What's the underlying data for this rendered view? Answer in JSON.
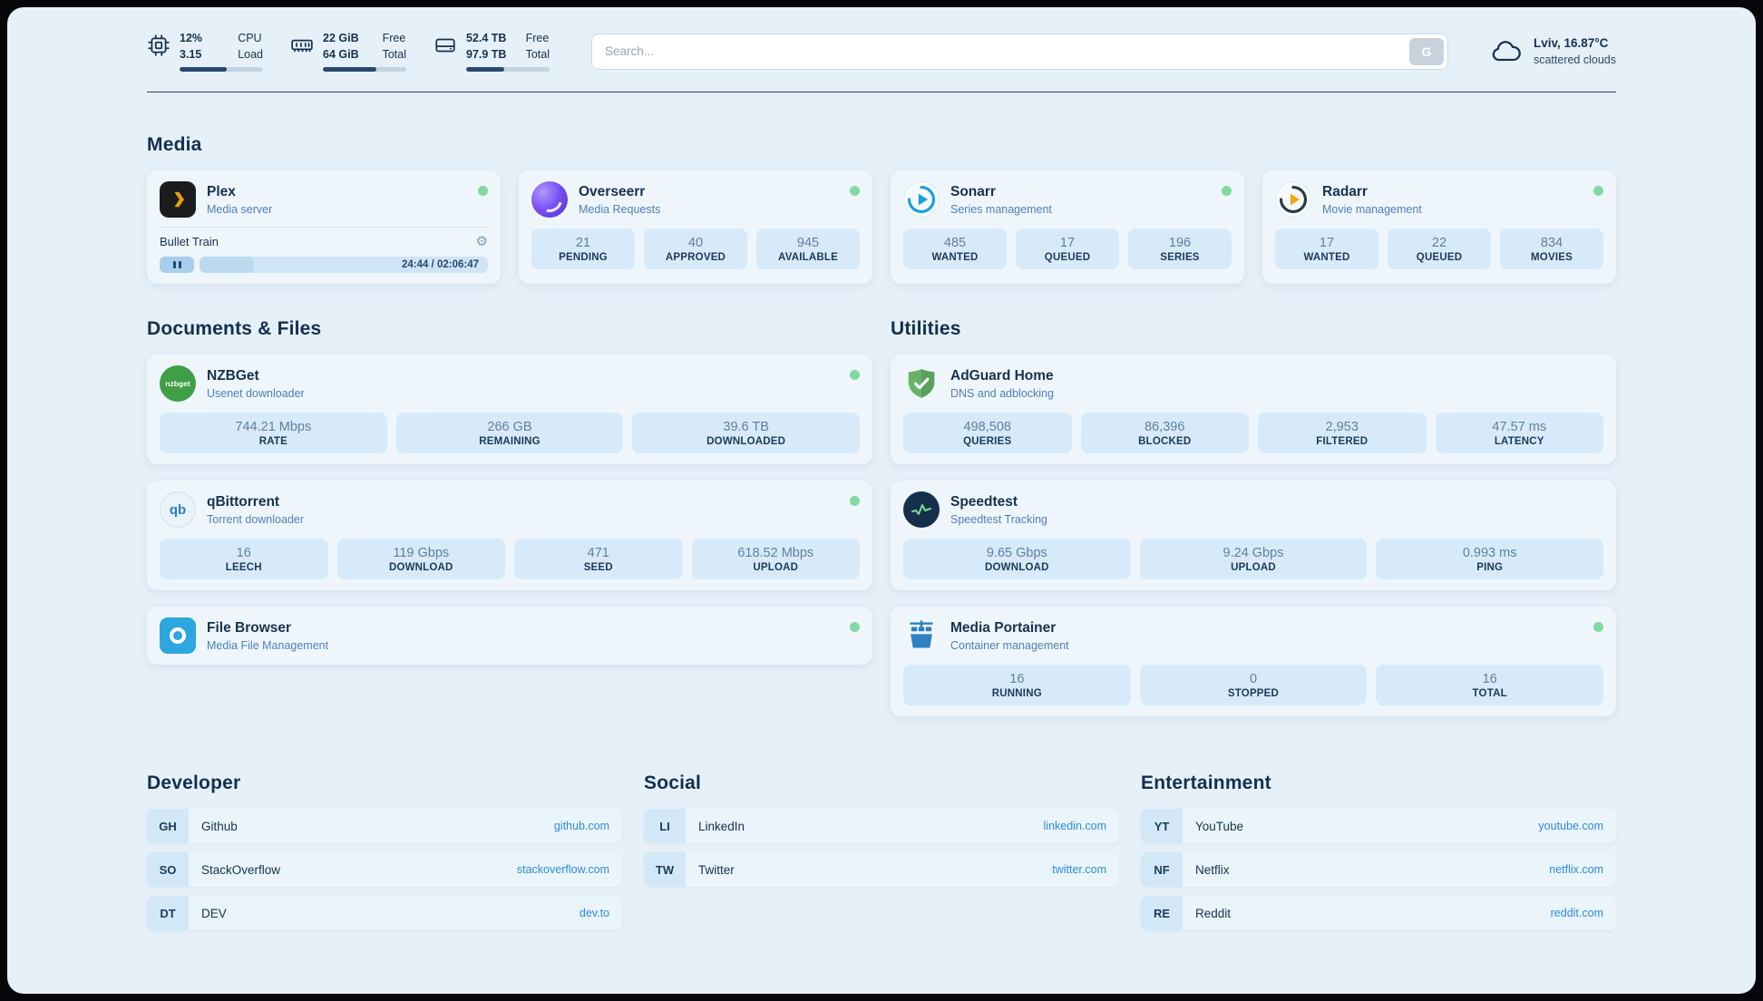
{
  "topbar": {
    "cpu": {
      "icon": "cpu-chip-icon",
      "value": "12%",
      "sub": "3.15",
      "label_top": "CPU",
      "label_bottom": "Load",
      "progress": 57
    },
    "memory": {
      "icon": "ram-icon",
      "value": "22 GiB",
      "sub": "64 GiB",
      "label_top": "Free",
      "label_bottom": "Total",
      "progress": 64
    },
    "disk": {
      "icon": "disk-icon",
      "value": "52.4 TB",
      "sub": "97.9 TB",
      "label_top": "Free",
      "label_bottom": "Total",
      "progress": 46
    },
    "search": {
      "placeholder": "Search...",
      "button_label": "G"
    },
    "weather": {
      "icon": "cloud-icon",
      "location": "Lviv, 16.87°C",
      "condition": "scattered clouds"
    }
  },
  "media": {
    "title": "Media",
    "plex": {
      "icon": "plex-icon",
      "name": "Plex",
      "subtitle": "Media server",
      "online": true,
      "now_playing": {
        "title": "Bullet Train",
        "time": "24:44 / 02:06:47",
        "progress": 19
      }
    },
    "overseerr": {
      "icon": "overseerr-icon",
      "name": "Overseerr",
      "subtitle": "Media Requests",
      "online": true,
      "stats": [
        {
          "value": "21",
          "label": "PENDING"
        },
        {
          "value": "40",
          "label": "APPROVED"
        },
        {
          "value": "945",
          "label": "AVAILABLE"
        }
      ]
    },
    "sonarr": {
      "icon": "sonarr-icon",
      "name": "Sonarr",
      "subtitle": "Series management",
      "online": true,
      "stats": [
        {
          "value": "485",
          "label": "WANTED"
        },
        {
          "value": "17",
          "label": "QUEUED"
        },
        {
          "value": "196",
          "label": "SERIES"
        }
      ]
    },
    "radarr": {
      "icon": "radarr-icon",
      "name": "Radarr",
      "subtitle": "Movie management",
      "online": true,
      "stats": [
        {
          "value": "17",
          "label": "WANTED"
        },
        {
          "value": "22",
          "label": "QUEUED"
        },
        {
          "value": "834",
          "label": "MOVIES"
        }
      ]
    }
  },
  "documents": {
    "title": "Documents & Files",
    "nzbget": {
      "icon": "nzbget-icon",
      "name": "NZBGet",
      "subtitle": "Usenet downloader",
      "online": true,
      "stats": [
        {
          "value": "744.21 Mbps",
          "label": "RATE"
        },
        {
          "value": "266 GB",
          "label": "REMAINING"
        },
        {
          "value": "39.6 TB",
          "label": "DOWNLOADED"
        }
      ]
    },
    "qbittorrent": {
      "icon": "qbittorrent-icon",
      "name": "qBittorrent",
      "subtitle": "Torrent downloader",
      "online": true,
      "stats": [
        {
          "value": "16",
          "label": "LEECH"
        },
        {
          "value": "119 Gbps",
          "label": "DOWNLOAD"
        },
        {
          "value": "471",
          "label": "SEED"
        },
        {
          "value": "618.52 Mbps",
          "label": "UPLOAD"
        }
      ]
    },
    "filebrowser": {
      "icon": "filebrowser-icon",
      "name": "File Browser",
      "subtitle": "Media File Management",
      "online": true
    }
  },
  "utilities": {
    "title": "Utilities",
    "adguard": {
      "icon": "adguard-shield-icon",
      "name": "AdGuard Home",
      "subtitle": "DNS and adblocking",
      "stats": [
        {
          "value": "498,508",
          "label": "QUERIES"
        },
        {
          "value": "86,396",
          "label": "BLOCKED"
        },
        {
          "value": "2,953",
          "label": "FILTERED"
        },
        {
          "value": "47.57 ms",
          "label": "LATENCY"
        }
      ]
    },
    "speedtest": {
      "icon": "speedtest-icon",
      "name": "Speedtest",
      "subtitle": "Speedtest Tracking",
      "stats": [
        {
          "value": "9.65 Gbps",
          "label": "DOWNLOAD"
        },
        {
          "value": "9.24 Gbps",
          "label": "UPLOAD"
        },
        {
          "value": "0.993 ms",
          "label": "PING"
        }
      ]
    },
    "portainer": {
      "icon": "portainer-icon",
      "name": "Media Portainer",
      "subtitle": "Container management",
      "online": true,
      "stats": [
        {
          "value": "16",
          "label": "RUNNING"
        },
        {
          "value": "0",
          "label": "STOPPED"
        },
        {
          "value": "16",
          "label": "TOTAL"
        }
      ]
    }
  },
  "bookmarks": {
    "developer": {
      "title": "Developer",
      "items": [
        {
          "abbr": "GH",
          "name": "Github",
          "url": "github.com"
        },
        {
          "abbr": "SO",
          "name": "StackOverflow",
          "url": "stackoverflow.com"
        },
        {
          "abbr": "DT",
          "name": "DEV",
          "url": "dev.to"
        }
      ]
    },
    "social": {
      "title": "Social",
      "items": [
        {
          "abbr": "LI",
          "name": "LinkedIn",
          "url": "linkedin.com"
        },
        {
          "abbr": "TW",
          "name": "Twitter",
          "url": "twitter.com"
        }
      ]
    },
    "entertainment": {
      "title": "Entertainment",
      "items": [
        {
          "abbr": "YT",
          "name": "YouTube",
          "url": "youtube.com"
        },
        {
          "abbr": "NF",
          "name": "Netflix",
          "url": "netflix.com"
        },
        {
          "abbr": "RE",
          "name": "Reddit",
          "url": "reddit.com"
        }
      ]
    }
  },
  "icons": {
    "gear": "⚙"
  },
  "colors": {
    "page_bg": "#e6f0f9",
    "card_bg": "#eef6fc",
    "stat_bg": "#d7eaf9",
    "text_dark": "#16324f",
    "value_text": "#5f7f9e",
    "subtitle_blue": "#4e7fba",
    "link_blue": "#2e8be0",
    "status_green": "#82d9a2",
    "plex_yellow": "#e5a00d"
  }
}
